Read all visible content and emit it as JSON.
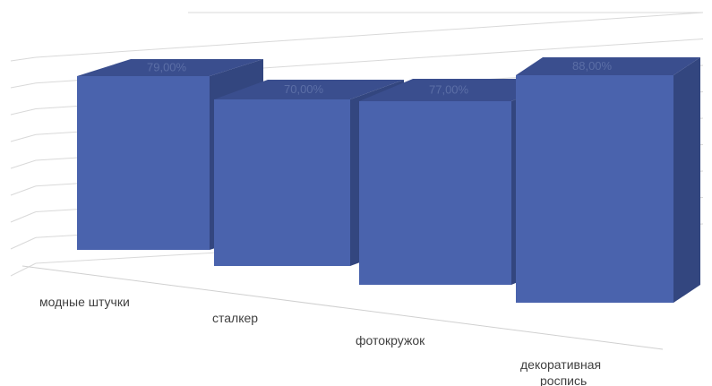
{
  "chart_data": {
    "type": "bar",
    "style": "3d-perspective",
    "categories": [
      "модные штучки",
      "сталкер",
      "фотокружок",
      "декоративная роспись"
    ],
    "category_lines": [
      [
        "модные штучки"
      ],
      [
        "сталкер"
      ],
      [
        "фотокружок"
      ],
      [
        "декоративная",
        "роспись"
      ]
    ],
    "values": [
      79.0,
      70.0,
      77.0,
      88.0
    ],
    "value_labels": [
      "79,00%",
      "70,00%",
      "77,00%",
      "88,00%"
    ],
    "title": "",
    "xlabel": "",
    "ylabel": "",
    "grid": true,
    "legend": "none",
    "colors": {
      "bar_front": "#4a63ad",
      "bar_top": "#3a4e8e",
      "bar_side": "#33467f",
      "gridline": "#d9d9d9",
      "label_text": "#404040",
      "value_text": "#5b6ea6"
    }
  }
}
